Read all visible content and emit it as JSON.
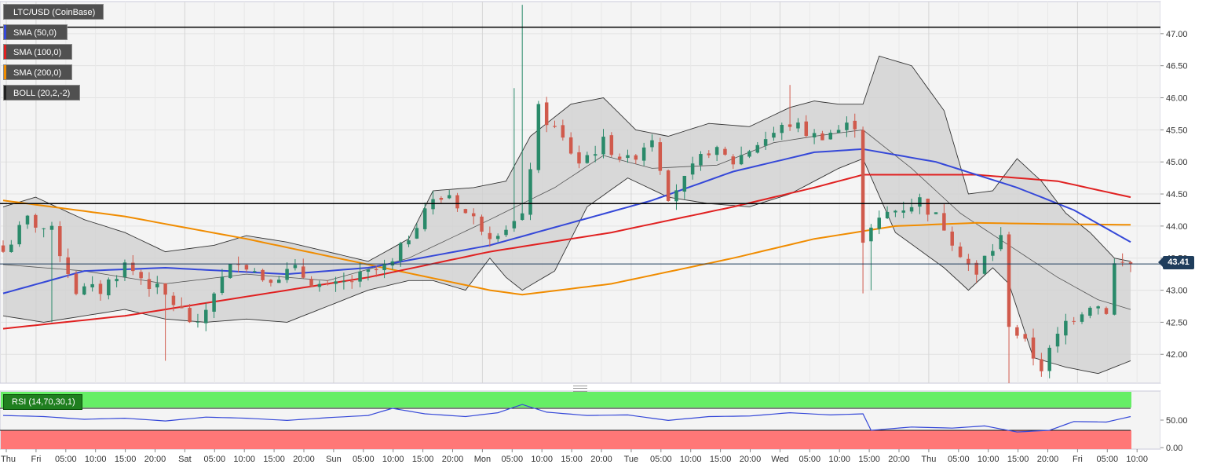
{
  "symbol_label": "LTC/USD (CoinBase)",
  "indicators": [
    {
      "label": "SMA (50,0)",
      "color": "#3548d8"
    },
    {
      "label": "SMA (100,0)",
      "color": "#e02020"
    },
    {
      "label": "SMA (200,0)",
      "color": "#f08c00"
    },
    {
      "label": "BOLL (20,2,-2)",
      "color": "#222222"
    }
  ],
  "rsi_label": "RSI (14,70,30,1)",
  "last_price": "43.41",
  "colors": {
    "up": "#2a8a6a",
    "down": "#d05a4c",
    "band_fill": "#cfcfcf",
    "rsi_line": "#3548d8",
    "rsi_upper_zone": "#66ee66",
    "rsi_lower_zone": "#ff7777"
  },
  "chart_data": {
    "type": "candlestick",
    "title": "LTC/USD (CoinBase)",
    "price_axis": {
      "ticks": [
        "47.00",
        "46.50",
        "46.00",
        "45.50",
        "45.00",
        "44.50",
        "44.00",
        "43.50",
        "43.00",
        "42.50",
        "42.00"
      ],
      "range": [
        41.55,
        47.5
      ]
    },
    "time_axis": {
      "ticks": [
        "Thu",
        "Fri",
        "05:00",
        "10:00",
        "15:00",
        "20:00",
        "Sat",
        "05:00",
        "10:00",
        "15:00",
        "20:00",
        "Sun",
        "05:00",
        "10:00",
        "15:00",
        "20:00",
        "Mon",
        "05:00",
        "10:00",
        "15:00",
        "20:00",
        "Tue",
        "05:00",
        "10:00",
        "15:00",
        "20:00",
        "Wed",
        "05:00",
        "10:00",
        "15:00",
        "20:00",
        "Thu",
        "05:00",
        "10:00",
        "15:00",
        "20:00",
        "Fri",
        "05:00",
        "10:00"
      ]
    },
    "horizontal_lines": [
      47.1,
      44.35
    ],
    "last_price": 43.41,
    "close_anchors": [
      [
        0,
        43.6
      ],
      [
        3,
        44.1
      ],
      [
        6,
        43.9
      ],
      [
        9,
        43.0
      ],
      [
        12,
        43.0
      ],
      [
        15,
        43.4
      ],
      [
        18,
        43.1
      ],
      [
        21,
        42.8
      ],
      [
        24,
        42.4
      ],
      [
        26,
        43.0
      ],
      [
        29,
        43.5
      ],
      [
        32,
        43.2
      ],
      [
        36,
        43.3
      ],
      [
        40,
        43.0
      ],
      [
        44,
        43.2
      ],
      [
        48,
        43.4
      ],
      [
        52,
        44.3
      ],
      [
        55,
        44.5
      ],
      [
        57,
        44.2
      ],
      [
        60,
        43.9
      ],
      [
        64,
        44.1
      ],
      [
        66,
        45.8
      ],
      [
        68,
        45.5
      ],
      [
        71,
        45.0
      ],
      [
        74,
        45.3
      ],
      [
        77,
        45.0
      ],
      [
        80,
        45.4
      ],
      [
        82,
        44.5
      ],
      [
        84,
        44.7
      ],
      [
        87,
        45.2
      ],
      [
        90,
        45.0
      ],
      [
        93,
        45.3
      ],
      [
        97,
        45.6
      ],
      [
        100,
        45.4
      ],
      [
        103,
        45.5
      ],
      [
        105,
        45.6
      ],
      [
        106,
        43.8
      ],
      [
        109,
        44.2
      ],
      [
        113,
        44.4
      ],
      [
        116,
        44.0
      ],
      [
        120,
        43.2
      ],
      [
        121,
        43.5
      ],
      [
        123,
        43.8
      ],
      [
        124,
        42.5
      ],
      [
        128,
        41.8
      ],
      [
        131,
        42.5
      ],
      [
        134,
        42.8
      ],
      [
        136,
        42.7
      ],
      [
        137,
        43.4
      ],
      [
        139,
        43.41
      ]
    ],
    "sma_50": [
      [
        0,
        42.95
      ],
      [
        10,
        43.3
      ],
      [
        20,
        43.35
      ],
      [
        35,
        43.25
      ],
      [
        45,
        43.35
      ],
      [
        60,
        43.7
      ],
      [
        70,
        44.05
      ],
      [
        80,
        44.4
      ],
      [
        90,
        44.85
      ],
      [
        100,
        45.15
      ],
      [
        106,
        45.2
      ],
      [
        115,
        45.0
      ],
      [
        125,
        44.6
      ],
      [
        132,
        44.25
      ],
      [
        139,
        43.75
      ]
    ],
    "sma_100": [
      [
        0,
        42.4
      ],
      [
        15,
        42.6
      ],
      [
        30,
        42.9
      ],
      [
        45,
        43.2
      ],
      [
        60,
        43.6
      ],
      [
        75,
        43.9
      ],
      [
        90,
        44.3
      ],
      [
        100,
        44.6
      ],
      [
        106,
        44.8
      ],
      [
        120,
        44.8
      ],
      [
        130,
        44.7
      ],
      [
        139,
        44.45
      ]
    ],
    "sma_200": [
      [
        0,
        44.4
      ],
      [
        15,
        44.15
      ],
      [
        30,
        43.8
      ],
      [
        45,
        43.4
      ],
      [
        60,
        43.0
      ],
      [
        64,
        42.93
      ],
      [
        75,
        43.1
      ],
      [
        90,
        43.5
      ],
      [
        100,
        43.8
      ],
      [
        110,
        44.0
      ],
      [
        120,
        44.05
      ],
      [
        130,
        44.03
      ],
      [
        139,
        44.02
      ]
    ],
    "boll_upper": [
      [
        0,
        44.3
      ],
      [
        4,
        44.45
      ],
      [
        10,
        44.1
      ],
      [
        15,
        43.9
      ],
      [
        20,
        43.6
      ],
      [
        26,
        43.7
      ],
      [
        30,
        43.85
      ],
      [
        35,
        43.75
      ],
      [
        40,
        43.6
      ],
      [
        45,
        43.45
      ],
      [
        50,
        43.8
      ],
      [
        53,
        44.55
      ],
      [
        58,
        44.6
      ],
      [
        62,
        44.7
      ],
      [
        65,
        45.4
      ],
      [
        70,
        45.9
      ],
      [
        74,
        46.0
      ],
      [
        78,
        45.5
      ],
      [
        82,
        45.4
      ],
      [
        87,
        45.6
      ],
      [
        92,
        45.55
      ],
      [
        97,
        45.85
      ],
      [
        100,
        45.95
      ],
      [
        103,
        45.9
      ],
      [
        106,
        45.9
      ],
      [
        108,
        46.65
      ],
      [
        112,
        46.5
      ],
      [
        116,
        45.8
      ],
      [
        119,
        44.5
      ],
      [
        122,
        44.55
      ],
      [
        125,
        45.05
      ],
      [
        128,
        44.7
      ],
      [
        131,
        44.2
      ],
      [
        134,
        43.9
      ],
      [
        137,
        43.5
      ],
      [
        139,
        43.45
      ]
    ],
    "boll_lower": [
      [
        0,
        42.6
      ],
      [
        5,
        42.5
      ],
      [
        10,
        42.6
      ],
      [
        15,
        42.7
      ],
      [
        20,
        42.55
      ],
      [
        25,
        42.5
      ],
      [
        30,
        42.55
      ],
      [
        35,
        42.5
      ],
      [
        40,
        42.75
      ],
      [
        45,
        43.0
      ],
      [
        50,
        43.15
      ],
      [
        53,
        43.15
      ],
      [
        57,
        43.0
      ],
      [
        60,
        43.5
      ],
      [
        62,
        43.2
      ],
      [
        64,
        43.0
      ],
      [
        68,
        43.3
      ],
      [
        72,
        44.3
      ],
      [
        77,
        44.75
      ],
      [
        82,
        44.45
      ],
      [
        87,
        44.35
      ],
      [
        92,
        44.3
      ],
      [
        97,
        44.5
      ],
      [
        103,
        44.9
      ],
      [
        106,
        45.05
      ],
      [
        110,
        43.9
      ],
      [
        116,
        43.35
      ],
      [
        119,
        43.0
      ],
      [
        122,
        43.35
      ],
      [
        124,
        43.1
      ],
      [
        127,
        41.95
      ],
      [
        131,
        41.8
      ],
      [
        135,
        41.7
      ],
      [
        139,
        41.9
      ]
    ],
    "boll_mid": [
      [
        0,
        43.4
      ],
      [
        10,
        43.3
      ],
      [
        20,
        43.1
      ],
      [
        30,
        43.25
      ],
      [
        40,
        43.15
      ],
      [
        50,
        43.5
      ],
      [
        60,
        44.1
      ],
      [
        68,
        44.6
      ],
      [
        74,
        45.1
      ],
      [
        80,
        44.9
      ],
      [
        88,
        44.95
      ],
      [
        95,
        45.3
      ],
      [
        100,
        45.4
      ],
      [
        106,
        45.5
      ],
      [
        112,
        44.9
      ],
      [
        118,
        44.2
      ],
      [
        124,
        43.7
      ],
      [
        130,
        43.2
      ],
      [
        135,
        42.85
      ],
      [
        139,
        42.7
      ]
    ],
    "rsi": {
      "ticks": [
        "50.00",
        "0.00"
      ],
      "upper_zone": 70,
      "lower_zone": 30,
      "values": [
        [
          0,
          57
        ],
        [
          5,
          55
        ],
        [
          10,
          50
        ],
        [
          15,
          52
        ],
        [
          20,
          47
        ],
        [
          25,
          54
        ],
        [
          30,
          52
        ],
        [
          35,
          48
        ],
        [
          40,
          53
        ],
        [
          45,
          57
        ],
        [
          48,
          70
        ],
        [
          52,
          60
        ],
        [
          57,
          55
        ],
        [
          61,
          62
        ],
        [
          64,
          77
        ],
        [
          67,
          63
        ],
        [
          72,
          57
        ],
        [
          77,
          58
        ],
        [
          82,
          48
        ],
        [
          87,
          55
        ],
        [
          92,
          56
        ],
        [
          97,
          62
        ],
        [
          102,
          58
        ],
        [
          106,
          60
        ],
        [
          107,
          30
        ],
        [
          112,
          36
        ],
        [
          117,
          34
        ],
        [
          121,
          38
        ],
        [
          125,
          27
        ],
        [
          129,
          30
        ],
        [
          132,
          46
        ],
        [
          136,
          45
        ],
        [
          139,
          55
        ]
      ]
    }
  }
}
